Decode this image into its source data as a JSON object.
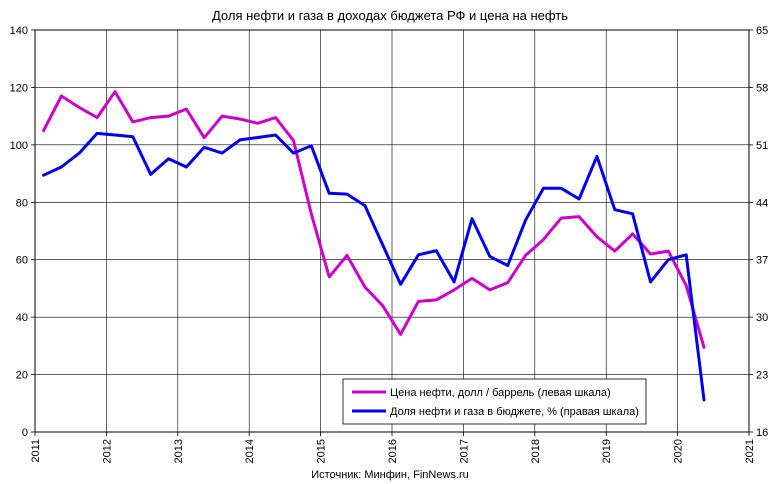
{
  "chart_data": {
    "type": "line",
    "title": "Доля нефти и газа в доходах бюджета РФ и цена на нефть",
    "source": "Источник: Минфин, FinNews.ru",
    "x_ticks": [
      "2011",
      "2012",
      "2013",
      "2014",
      "2015",
      "2016",
      "2017",
      "2018",
      "2019",
      "2020",
      "2021"
    ],
    "xlim": [
      2011,
      2021
    ],
    "y_left": {
      "lim": [
        0,
        140
      ],
      "ticks": [
        "0",
        "20",
        "40",
        "60",
        "80",
        "100",
        "120",
        "140"
      ]
    },
    "y_right": {
      "lim": [
        16,
        65
      ],
      "ticks": [
        "16",
        "23",
        "30",
        "37",
        "44",
        "51",
        "58",
        "65"
      ]
    },
    "grid": true,
    "legend_position": "bottom-right",
    "series": [
      {
        "name": "Цена нефти, долл / баррель (левая шкала)",
        "axis": "left",
        "color": "#cc00cc",
        "x": [
          2011.12,
          2011.37,
          2011.62,
          2011.87,
          2012.12,
          2012.37,
          2012.62,
          2012.87,
          2013.12,
          2013.37,
          2013.62,
          2013.87,
          2014.12,
          2014.37,
          2014.62,
          2014.87,
          2015.12,
          2015.37,
          2015.62,
          2015.87,
          2016.12,
          2016.37,
          2016.62,
          2016.87,
          2017.12,
          2017.37,
          2017.62,
          2017.87,
          2018.12,
          2018.37,
          2018.62,
          2018.87,
          2019.12,
          2019.37,
          2019.62,
          2019.87,
          2020.12,
          2020.37
        ],
        "values": [
          105,
          117,
          113,
          109.5,
          118.5,
          108,
          109.5,
          110,
          112.5,
          102.5,
          110,
          109,
          107.5,
          109.5,
          101.5,
          76,
          54,
          61.5,
          50.5,
          44,
          34,
          45.5,
          46,
          49.5,
          53.5,
          49.5,
          52,
          61.5,
          67,
          74.5,
          75,
          68,
          63,
          69,
          62,
          63,
          51,
          29.5
        ]
      },
      {
        "name": "Доля нефти и газа в бюджете, % (правая шкала)",
        "axis": "right",
        "color": "#0000ee",
        "x": [
          2011.12,
          2011.37,
          2011.62,
          2011.87,
          2012.12,
          2012.37,
          2012.62,
          2012.87,
          2013.12,
          2013.37,
          2013.62,
          2013.87,
          2014.12,
          2014.37,
          2014.62,
          2014.87,
          2015.12,
          2015.37,
          2015.62,
          2015.87,
          2016.12,
          2016.37,
          2016.62,
          2016.87,
          2017.12,
          2017.37,
          2017.62,
          2017.87,
          2018.12,
          2018.37,
          2018.62,
          2018.87,
          2019.12,
          2019.37,
          2019.62,
          2019.87,
          2020.12,
          2020.37
        ],
        "values": [
          47.3,
          48.3,
          50.0,
          52.4,
          52.2,
          52.0,
          47.4,
          49.3,
          48.3,
          50.7,
          50.0,
          51.6,
          51.9,
          52.2,
          50.0,
          50.9,
          45.1,
          45.0,
          43.6,
          38.8,
          34.0,
          37.6,
          38.1,
          34.3,
          42.0,
          37.4,
          36.3,
          41.8,
          45.7,
          45.7,
          44.4,
          49.6,
          43.1,
          42.6,
          34.3,
          37.0,
          37.6,
          19.9
        ]
      }
    ]
  }
}
